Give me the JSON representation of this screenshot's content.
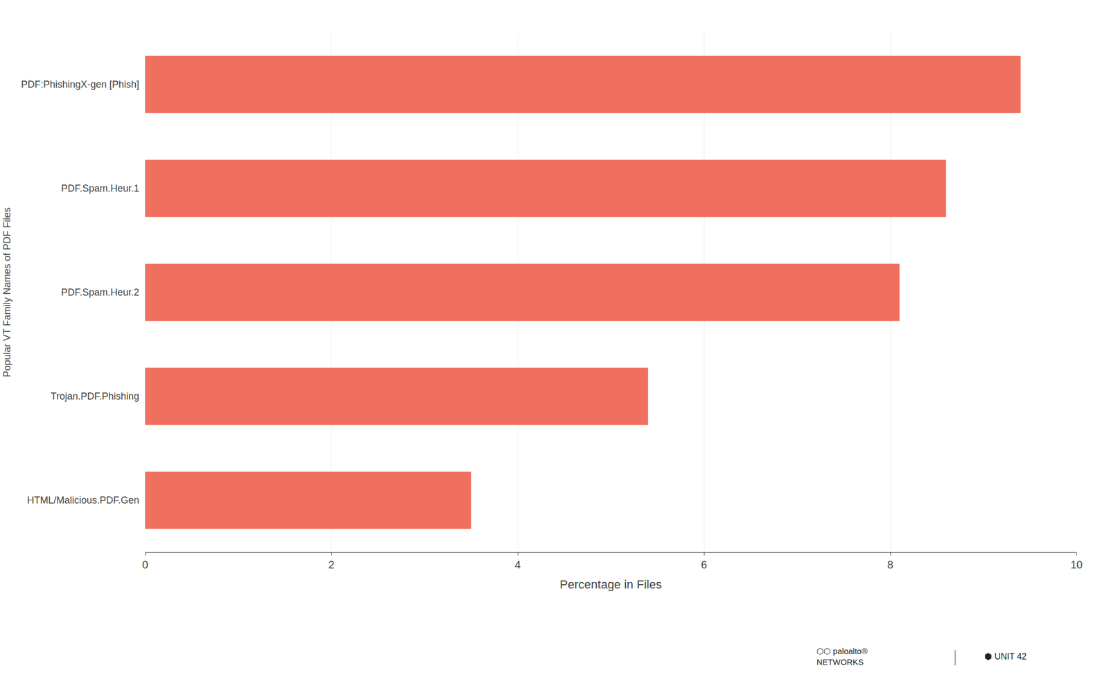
{
  "chart_data": {
    "type": "bar",
    "orientation": "horizontal",
    "categories": [
      "HTML/Malicious.PDF.Gen",
      "Trojan.PDF.Phishing",
      "PDF.Spam.Heur.2",
      "PDF.Spam.Heur.1",
      "PDF:PhishingX-gen [Phish]"
    ],
    "values": [
      3.5,
      5.4,
      8.1,
      8.6,
      9.4
    ],
    "color": "#F07060",
    "xlabel": "Percentage in Files",
    "ylabel": "Popular VT Family Names of PDF Files",
    "xlim": [
      0,
      10
    ],
    "xticks": [
      0,
      2,
      4,
      6,
      8,
      10
    ],
    "grid": true,
    "annotations": [
      "⬡⬡ paloalto®\nNETWORKS",
      "|",
      "⬢ UNIT 42"
    ]
  }
}
